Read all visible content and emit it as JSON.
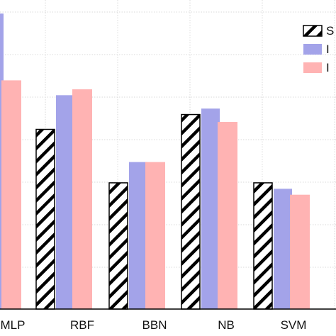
{
  "chart_data": {
    "type": "bar",
    "categories": [
      "MLP",
      "RBF",
      "BBN",
      "NB",
      "SVM"
    ],
    "ylim": [
      0,
      1
    ],
    "grid": true,
    "legend_placement": "top-right",
    "series": [
      {
        "label_visible": "S",
        "pattern": "hatch",
        "color": "#000000",
        "values": [
          null,
          0.605,
          0.425,
          0.655,
          0.425
        ]
      },
      {
        "label_visible": "I",
        "pattern": "solid",
        "color": "#a3a3e9",
        "values": [
          0.995,
          0.72,
          0.495,
          0.675,
          0.405
        ]
      },
      {
        "label_visible": "I",
        "pattern": "solid",
        "color": "#ffb3b3",
        "values": [
          0.77,
          0.74,
          0.495,
          0.63,
          0.385
        ]
      }
    ]
  }
}
